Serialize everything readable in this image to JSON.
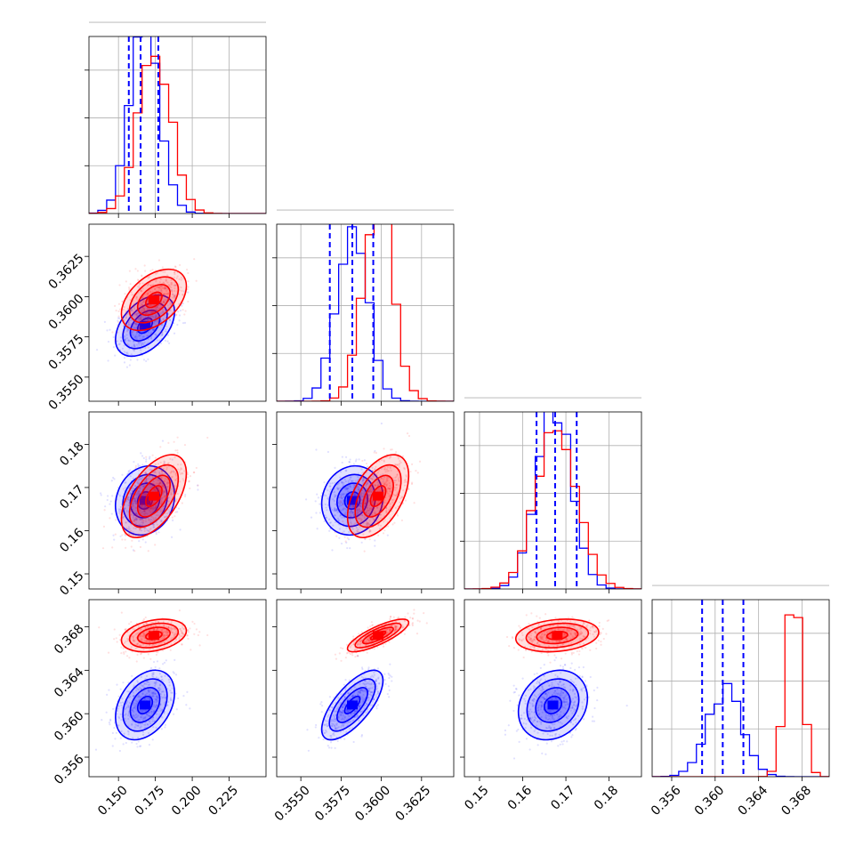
{
  "chart_data": {
    "type": "corner",
    "title": "",
    "parameters": [
      {
        "name": "",
        "range": [
          0.13,
          0.25
        ],
        "ticks": [
          0.15,
          0.175,
          0.2,
          0.225
        ],
        "tick_labels": [
          "0.150",
          "0.175",
          "0.200",
          "0.225"
        ]
      },
      {
        "name": "",
        "range": [
          0.3535,
          0.3645
        ],
        "ticks": [
          0.355,
          0.3575,
          0.36,
          0.3625
        ],
        "tick_labels": [
          "0.3550",
          "0.3575",
          "0.3600",
          "0.3625"
        ]
      },
      {
        "name": "",
        "range": [
          0.1465,
          0.1875
        ],
        "ticks": [
          0.15,
          0.16,
          0.17,
          0.18
        ],
        "tick_labels": [
          "0.15",
          "0.16",
          "0.17",
          "0.18"
        ]
      },
      {
        "name": "",
        "range": [
          0.3542,
          0.3705
        ],
        "ticks": [
          0.356,
          0.36,
          0.364,
          0.368
        ],
        "tick_labels": [
          "0.356",
          "0.360",
          "0.364",
          "0.368"
        ]
      }
    ],
    "series": [
      {
        "name": "",
        "color": "#0000ff",
        "mean": [
          0.168,
          0.3582,
          0.167,
          0.3608
        ],
        "std": [
          0.01,
          0.00095,
          0.004,
          0.0016
        ],
        "corr": [
          [
            1,
            0.45,
            0.15,
            0.35
          ],
          [
            0.45,
            1,
            0.1,
            0.7
          ],
          [
            0.15,
            0.1,
            1,
            0.2
          ],
          [
            0.35,
            0.7,
            0.2,
            1
          ]
        ]
      },
      {
        "name": "",
        "color": "#ff0000",
        "mean": [
          0.174,
          0.3598,
          0.168,
          0.3672
        ],
        "std": [
          0.011,
          0.00095,
          0.0048,
          0.00075
        ],
        "corr": [
          [
            1,
            0.45,
            0.55,
            0.3
          ],
          [
            0.45,
            1,
            0.5,
            0.8
          ],
          [
            0.55,
            0.5,
            1,
            0.2
          ],
          [
            0.3,
            0.8,
            0.2,
            1
          ]
        ]
      }
    ],
    "quantile_lines": {
      "color": "#0000ff",
      "style": "dashed",
      "values": [
        [
          0.157,
          0.165,
          0.177
        ],
        [
          0.3568,
          0.3582,
          0.3595
        ],
        [
          0.1632,
          0.1675,
          0.1725
        ],
        [
          0.3588,
          0.3607,
          0.3626
        ]
      ]
    },
    "grid": true,
    "legend": "none"
  }
}
